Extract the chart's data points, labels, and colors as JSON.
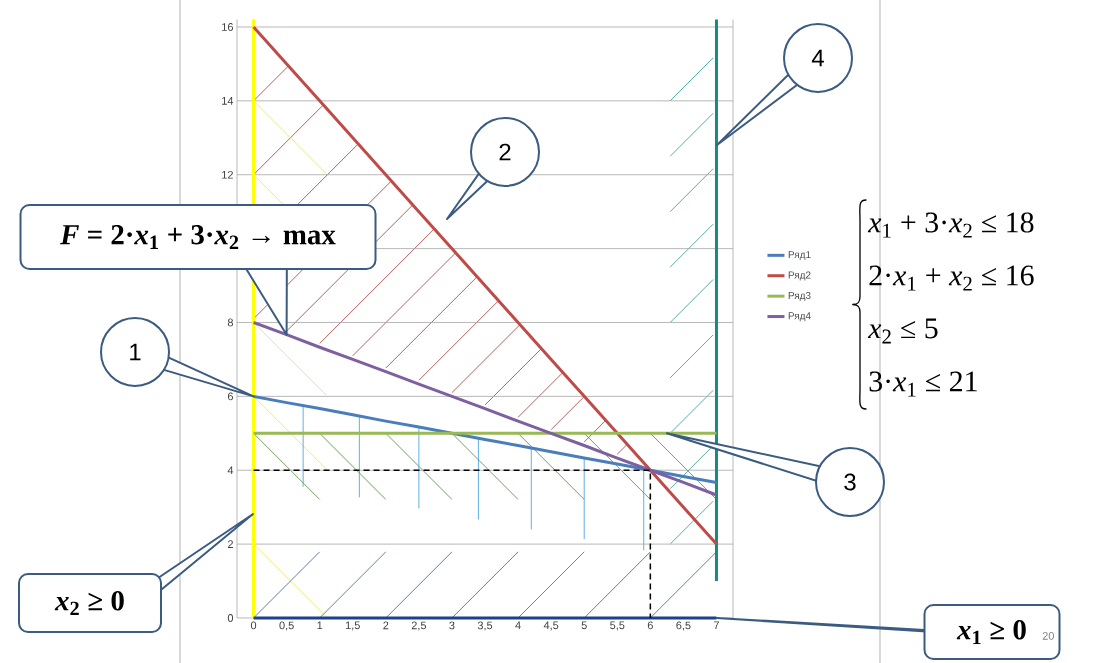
{
  "chart_data": {
    "type": "line",
    "x": [
      0,
      0.5,
      1,
      1.5,
      2,
      2.5,
      3,
      3.5,
      4,
      4.5,
      5,
      5.5,
      6,
      6.5,
      7
    ],
    "series": [
      {
        "type": "line",
        "color": "#ffff00",
        "x": [
          0,
          0
        ],
        "values": [
          0,
          16.2
        ]
      },
      {
        "type": "line",
        "color": "#1a8a80",
        "x": [
          7,
          7
        ],
        "values": [
          1,
          16.2
        ]
      },
      {
        "type": "line",
        "color": "#1f3f8f",
        "x": [
          0,
          7
        ],
        "values": [
          0,
          0
        ]
      },
      {
        "name": "Ряд1",
        "color": "#4a7ebb",
        "values": [
          6,
          5.83,
          5.67,
          5.5,
          5.33,
          5.17,
          5,
          4.83,
          4.67,
          4.5,
          4.33,
          4.17,
          4,
          3.83,
          3.67
        ]
      },
      {
        "name": "Ряд2",
        "color": "#be4b48",
        "values": [
          16,
          15,
          14,
          13,
          12,
          11,
          10,
          9,
          8,
          7,
          6,
          5,
          4,
          3,
          2
        ]
      },
      {
        "name": "Ряд3",
        "color": "#98b954",
        "values": [
          5,
          5,
          5,
          5,
          5,
          5,
          5,
          5,
          5,
          5,
          5,
          5,
          5,
          5,
          5
        ]
      },
      {
        "name": "Ряд4",
        "color": "#7d60a0",
        "values": [
          8,
          7.67,
          7.33,
          7,
          6.67,
          6.33,
          6,
          5.67,
          5.33,
          5,
          4.67,
          4.33,
          4,
          3.67,
          3.33
        ]
      },
      {
        "type": "line",
        "color": "#000000",
        "line_style": "dashed",
        "x": [
          0,
          6,
          6
        ],
        "values": [
          4,
          4,
          0
        ]
      }
    ],
    "xlim": [
      -0.25,
      7.25
    ],
    "xticks": [
      0,
      {
        "value": 0.5,
        "label": "0,5"
      },
      1,
      {
        "value": 1.5,
        "label": "1,5"
      },
      2,
      {
        "value": 2.5,
        "label": "2,5"
      },
      3,
      {
        "value": 3.5,
        "label": "3,5"
      },
      4,
      {
        "value": 4.5,
        "label": "4,5"
      },
      5,
      {
        "value": 5.5,
        "label": "5,5"
      },
      6,
      {
        "value": 6.5,
        "label": "6,5"
      },
      7
    ],
    "ylim": [
      0,
      16.2
    ],
    "yticks": [
      0,
      2,
      4,
      6,
      8,
      {
        "value": 10,
        "label": null
      },
      12,
      14,
      16
    ],
    "grid": "y",
    "legend": "right",
    "marker": "none",
    "line_style": "solid",
    "annotations": [
      {
        "text": "1",
        "x": 0,
        "y": 6
      },
      "2",
      {
        "text": "3",
        "x": 6.25,
        "y": 5
      },
      "4",
      {
        "text": "*F* = 2·*x*$_{1}$ + 3·*x*$_{2}$ → max",
        "x": 0.5,
        "y": 7.67
      },
      "*x*$_{2}$ ≥ 0",
      {
        "text": "*x*$_{1}$ ≥ 0",
        "x": 7,
        "y": 0
      },
      "*x*$_{1}$ + 3·*x*$_{2}$ ≤ 18",
      "2·*x*$_{1}$ + *x*$_{2}$ ≤ 16",
      "*x*$_{2}$ ≤ 5",
      "3·*x*$_{1}$ ≤ 21",
      "20"
    ]
  }
}
